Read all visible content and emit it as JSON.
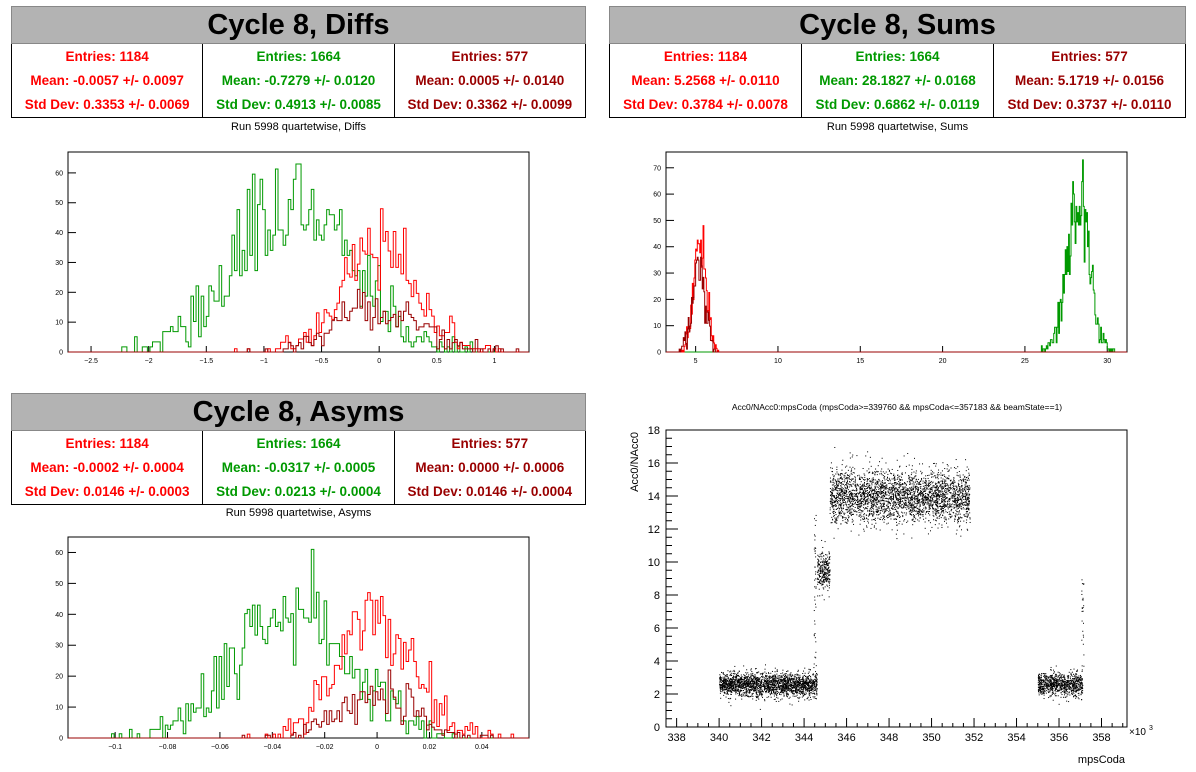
{
  "panels": {
    "diffs": {
      "header": "Cycle 8, Diffs",
      "subtitle": "Run 5998 quartetwise, Diffs",
      "stats": [
        {
          "entries": "Entries: 1184",
          "mean": "Mean: -0.0057 +/- 0.0097",
          "std": "Std Dev: 0.3353 +/- 0.0069",
          "color": "#ff0000"
        },
        {
          "entries": "Entries: 1664",
          "mean": "Mean: -0.7279 +/- 0.0120",
          "std": "Std Dev: 0.4913 +/- 0.0085",
          "color": "#009900"
        },
        {
          "entries": "Entries: 577",
          "mean": "Mean: 0.0005 +/- 0.0140",
          "std": "Std Dev: 0.3362 +/- 0.0099",
          "color": "#990000"
        }
      ]
    },
    "sums": {
      "header": "Cycle 8, Sums",
      "subtitle": "Run 5998 quartetwise, Sums",
      "stats": [
        {
          "entries": "Entries: 1184",
          "mean": "Mean: 5.2568 +/- 0.0110",
          "std": "Std Dev: 0.3784 +/- 0.0078",
          "color": "#ff0000"
        },
        {
          "entries": "Entries: 1664",
          "mean": "Mean: 28.1827 +/- 0.0168",
          "std": "Std Dev: 0.6862 +/- 0.0119",
          "color": "#009900"
        },
        {
          "entries": "Entries: 577",
          "mean": "Mean: 5.1719 +/- 0.0156",
          "std": "Std Dev: 0.3737 +/- 0.0110",
          "color": "#990000"
        }
      ]
    },
    "asyms": {
      "header": "Cycle 8, Asyms",
      "subtitle": "Run 5998 quartetwise, Asyms",
      "stats": [
        {
          "entries": "Entries: 1184",
          "mean": "Mean: -0.0002 +/- 0.0004",
          "std": "Std Dev: 0.0146 +/- 0.0003",
          "color": "#ff0000"
        },
        {
          "entries": "Entries: 1664",
          "mean": "Mean: -0.0317 +/- 0.0005",
          "std": "Std Dev: 0.0213 +/- 0.0004",
          "color": "#009900"
        },
        {
          "entries": "Entries: 577",
          "mean": "Mean: 0.0000 +/- 0.0006",
          "std": "Std Dev: 0.0146 +/- 0.0004",
          "color": "#990000"
        }
      ]
    },
    "scatter": {
      "title": "Acc0/NAcc0:mpsCoda (mpsCoda>=339760 && mpsCoda<=357183 && beamState==1)",
      "xlabel": "mpsCoda",
      "ylabel": "Acc0/NAcc0",
      "xexp": "×10",
      "xexp_sup": "3"
    }
  },
  "chart_data": [
    {
      "type": "histogram",
      "name": "diffs",
      "xlim": [
        -2.7,
        1.3
      ],
      "ylim": [
        0,
        67
      ],
      "xticks": [
        -2.5,
        -2,
        -1.5,
        -1,
        -0.5,
        0,
        0.5,
        1
      ],
      "yticks": [
        0,
        10,
        20,
        30,
        40,
        50,
        60
      ],
      "series": [
        {
          "color": "#009900",
          "entries": 1664,
          "mean": -0.7279,
          "std": 0.4913,
          "peak": 63
        },
        {
          "color": "#ff0000",
          "entries": 1184,
          "mean": -0.0057,
          "std": 0.3353,
          "peak": 48
        },
        {
          "color": "#990000",
          "entries": 577,
          "mean": 0.0005,
          "std": 0.3362,
          "peak": 21
        }
      ]
    },
    {
      "type": "histogram",
      "name": "sums",
      "xlim": [
        3.2,
        31.2
      ],
      "ylim": [
        0,
        76
      ],
      "xticks": [
        5,
        10,
        15,
        20,
        25,
        30
      ],
      "yticks": [
        0,
        10,
        20,
        30,
        40,
        50,
        60,
        70
      ],
      "series": [
        {
          "color": "#009900",
          "entries": 1664,
          "mean": 28.1827,
          "std": 0.6862,
          "peak": 73
        },
        {
          "color": "#ff0000",
          "entries": 1184,
          "mean": 5.2568,
          "std": 0.3784,
          "peak": 48
        },
        {
          "color": "#990000",
          "entries": 577,
          "mean": 5.1719,
          "std": 0.3737,
          "peak": 36
        }
      ]
    },
    {
      "type": "histogram",
      "name": "asyms",
      "xlim": [
        -0.118,
        0.058
      ],
      "ylim": [
        0,
        65
      ],
      "xticks": [
        -0.1,
        -0.08,
        -0.06,
        -0.04,
        -0.02,
        0,
        0.02,
        0.04
      ],
      "yticks": [
        0,
        10,
        20,
        30,
        40,
        50,
        60
      ],
      "series": [
        {
          "color": "#009900",
          "entries": 1664,
          "mean": -0.0317,
          "std": 0.0213,
          "peak": 61
        },
        {
          "color": "#ff0000",
          "entries": 1184,
          "mean": -0.0002,
          "std": 0.0146,
          "peak": 47
        },
        {
          "color": "#990000",
          "entries": 577,
          "mean": 0.0,
          "std": 0.0146,
          "peak": 22
        }
      ]
    },
    {
      "type": "scatter",
      "name": "scatter",
      "xlim": [
        337.5,
        359.2
      ],
      "ylim": [
        0,
        18
      ],
      "xticks": [
        338,
        340,
        342,
        344,
        346,
        348,
        350,
        352,
        354,
        356,
        358
      ],
      "yticks": [
        0,
        2,
        4,
        6,
        8,
        10,
        12,
        14,
        16,
        18
      ],
      "clusters": [
        {
          "x": [
            340.0,
            344.6
          ],
          "y_center": 2.6,
          "y_spread": 0.35,
          "count": 2200
        },
        {
          "x": [
            344.6,
            345.2
          ],
          "y_center": 9.5,
          "y_spread": 0.6,
          "count": 260
        },
        {
          "x": [
            345.2,
            351.8
          ],
          "y_center": 14.0,
          "y_spread": 0.8,
          "count": 3000
        },
        {
          "x": [
            355.0,
            357.1
          ],
          "y_center": 2.6,
          "y_spread": 0.35,
          "count": 900
        }
      ]
    }
  ]
}
